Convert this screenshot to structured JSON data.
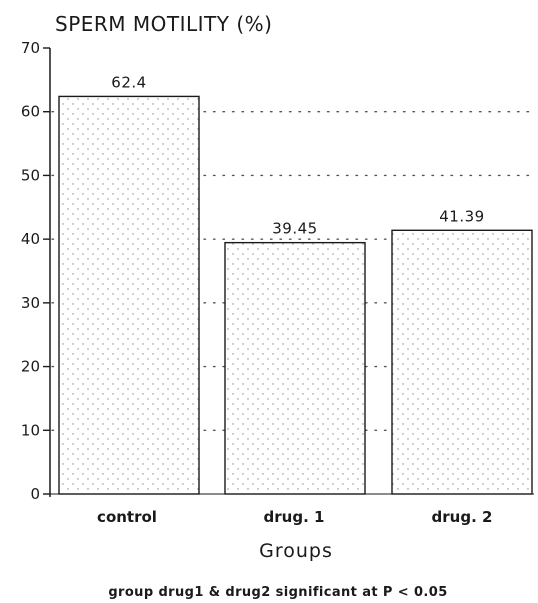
{
  "chart_data": {
    "type": "bar",
    "ylabel": "SPERM MOTILITY (%)",
    "xlabel": "Groups",
    "categories": [
      "control",
      "drug. 1",
      "drug. 2"
    ],
    "values": [
      62.4,
      39.45,
      41.39
    ],
    "data_labels": [
      "62.4",
      "39.45",
      "41.39"
    ],
    "ylim": [
      0,
      70
    ],
    "yticks": [
      0,
      10,
      20,
      30,
      40,
      50,
      60,
      70
    ],
    "grid": "dotted horizontal",
    "note": "group drug1 & drug2 significant at P < 0.05"
  },
  "colors": {
    "ink": "#1a1a1a",
    "bar_fill": "#ffffff",
    "stipple": "#8a8a8a",
    "grid": "#555555"
  }
}
